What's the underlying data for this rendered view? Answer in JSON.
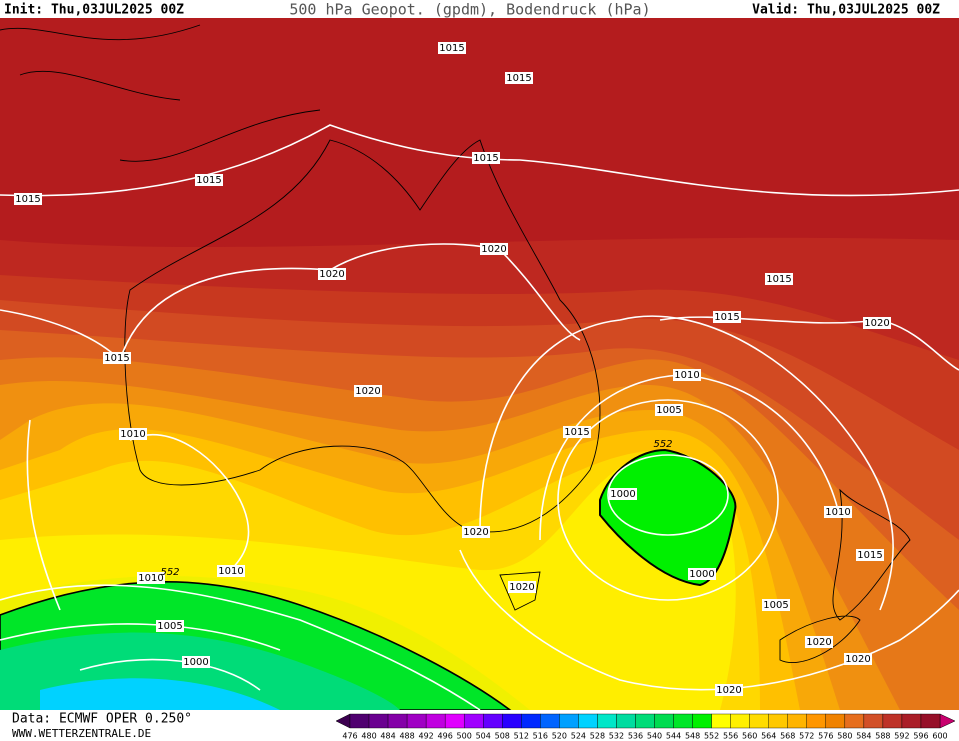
{
  "header": {
    "init": "Init: Thu,03JUL2025 00Z",
    "title": "500 hPa Geopot. (gpdm), Bodendruck (hPa)",
    "valid": "Valid: Thu,03JUL2025 00Z"
  },
  "isobar_labels": [
    "1015",
    "1015",
    "1015",
    "1015",
    "1015",
    "1020",
    "1020",
    "1015",
    "1015",
    "1020",
    "1015",
    "1010",
    "1020",
    "1005",
    "1015",
    "1010",
    "1000",
    "1010",
    "1020",
    "1015",
    "1010",
    "1010",
    "1000",
    "1020",
    "1005",
    "1005",
    "1020",
    "1020",
    "1000",
    "1020"
  ],
  "contour_labels": [
    "552",
    "552"
  ],
  "footer": {
    "source": "Data: ECMWF OPER 0.250°",
    "website": "WWW.WETTERZENTRALE.DE"
  },
  "colorbar": {
    "ticks": [
      476,
      480,
      484,
      488,
      492,
      496,
      500,
      504,
      508,
      512,
      516,
      520,
      524,
      528,
      532,
      536,
      540,
      544,
      548,
      552,
      556,
      560,
      564,
      568,
      572,
      576,
      580,
      584,
      588,
      592,
      596,
      600
    ],
    "colors": [
      "#500070",
      "#6a0090",
      "#8400a8",
      "#a000c4",
      "#c000e0",
      "#e000ff",
      "#a000ff",
      "#6400ff",
      "#2800ff",
      "#0028ff",
      "#0064ff",
      "#00a0ff",
      "#00d2ff",
      "#00e6c8",
      "#00dca0",
      "#00dc78",
      "#00dc50",
      "#00e628",
      "#00f000",
      "#ffff00",
      "#fff000",
      "#ffdc00",
      "#ffc800",
      "#ffb400",
      "#ff9600",
      "#f08200",
      "#e66e1e",
      "#d25028",
      "#be3228",
      "#aa1e28",
      "#961028"
    ]
  }
}
